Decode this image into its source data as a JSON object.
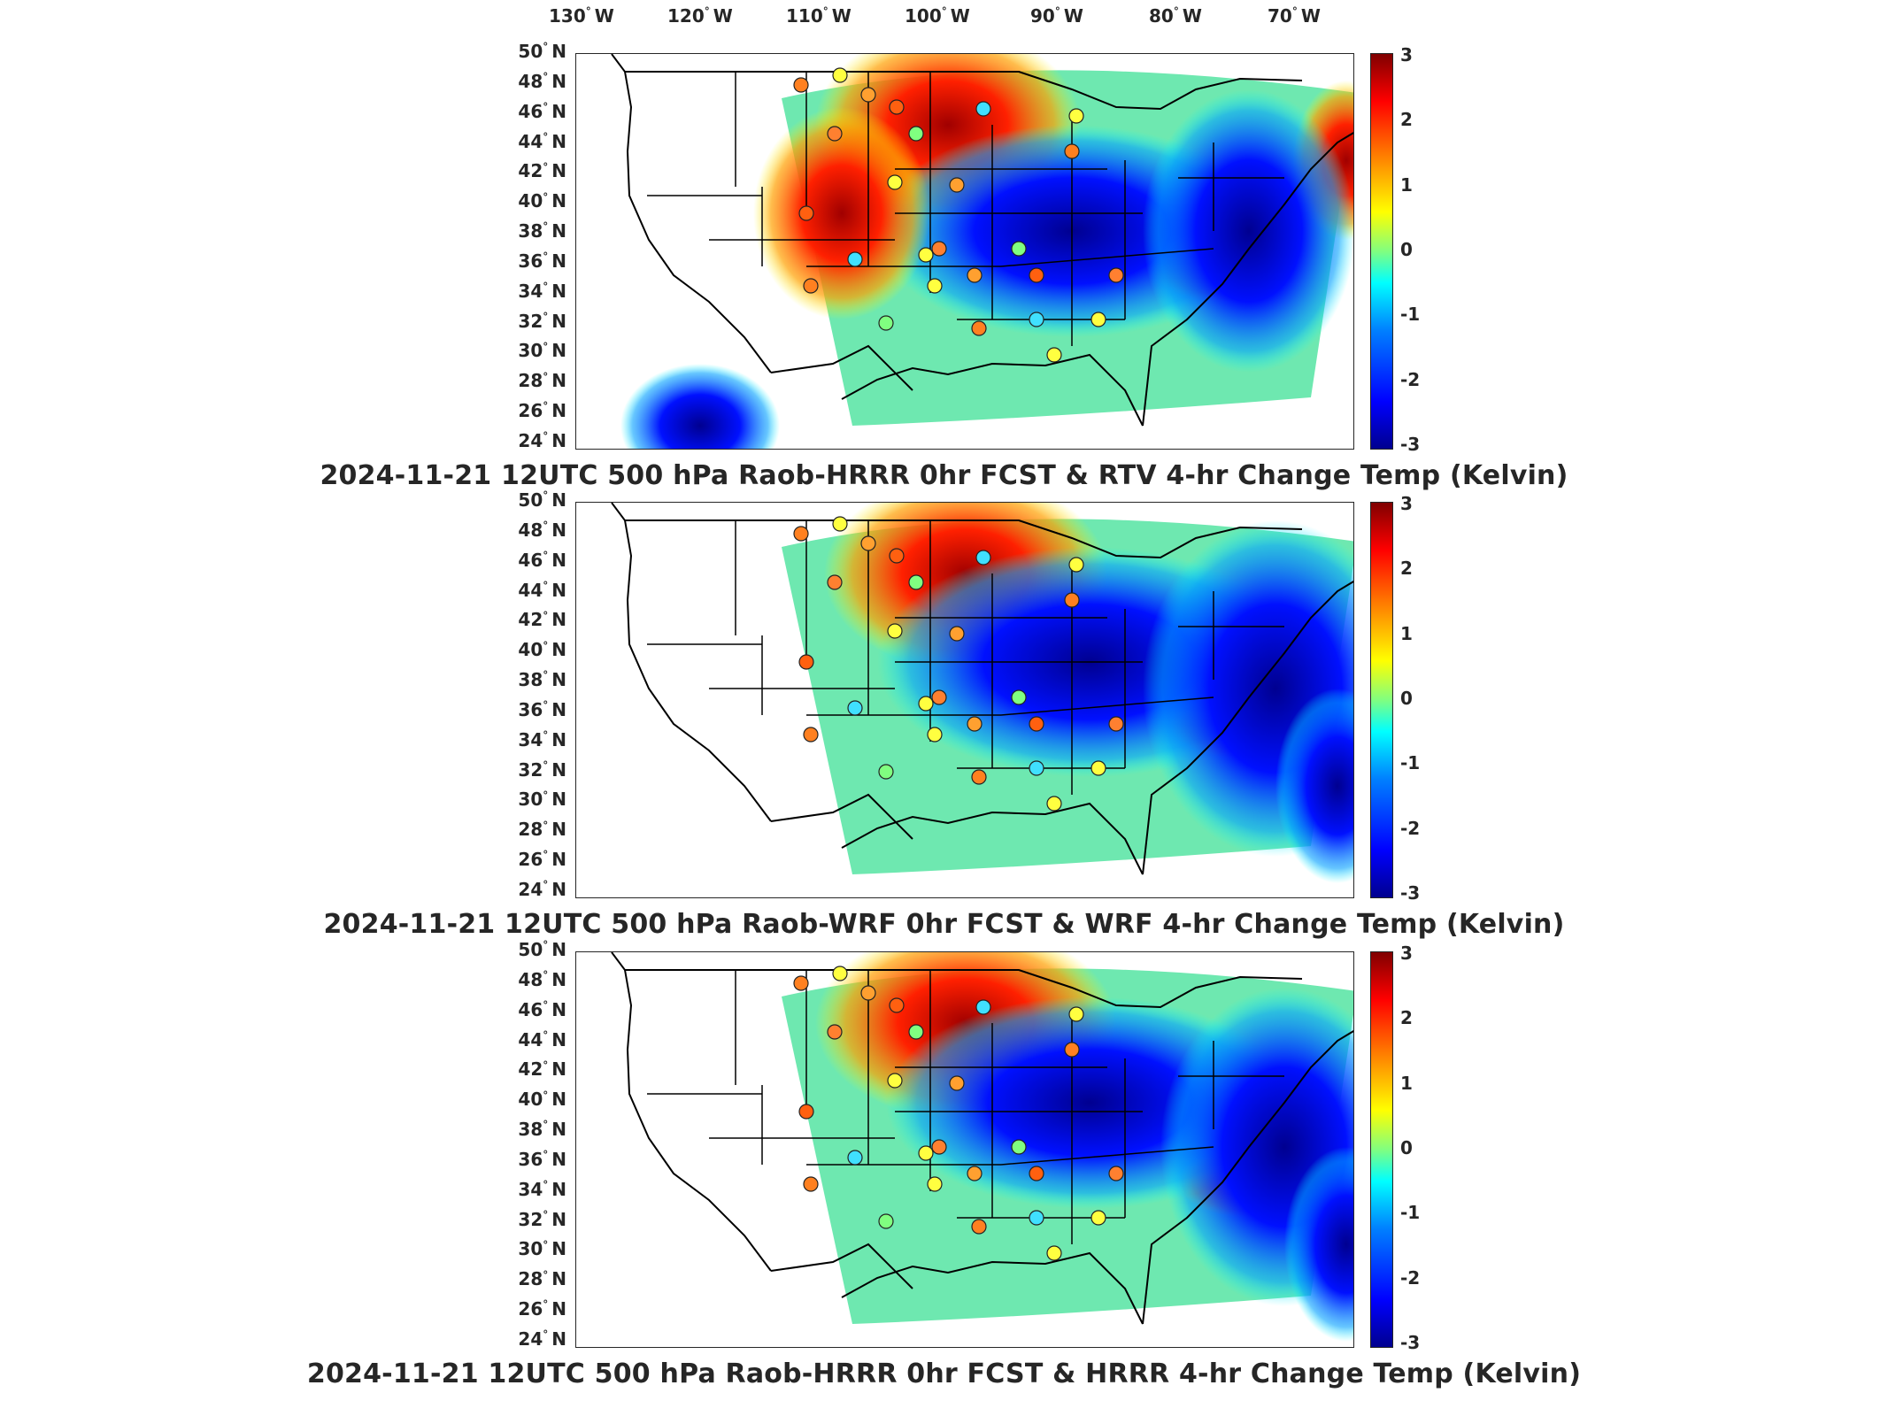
{
  "longitude_labels": [
    "130",
    "120",
    "110",
    "100",
    "90",
    "80",
    "70"
  ],
  "longitude_suffix": "W",
  "latitude_labels": [
    "50",
    "48",
    "46",
    "44",
    "42",
    "40",
    "38",
    "36",
    "34",
    "32",
    "30",
    "28",
    "26",
    "24"
  ],
  "latitude_suffix": "N",
  "degree_symbol": "°",
  "colorbar": {
    "ticks": [
      "3",
      "2",
      "1",
      "0",
      "-1",
      "-2",
      "-3"
    ],
    "range": [
      -3,
      3
    ],
    "colormap": [
      "#00008f",
      "#0000ff",
      "#0080ff",
      "#00ffff",
      "#80ff80",
      "#ffff00",
      "#ff8000",
      "#ff0000",
      "#800000"
    ]
  },
  "panels": [
    {
      "title": "2024-11-21 12UTC 500 hPa Raob-HRRR 0hr FCST & RTV 4-hr Change Temp (Kelvin)"
    },
    {
      "title": "2024-11-21 12UTC 500 hPa Raob-WRF 0hr FCST & WRF 4-hr Change Temp (Kelvin)"
    },
    {
      "title": "2024-11-21 12UTC 500 hPa Raob-HRRR 0hr FCST & HRRR 4-hr Change Temp (Kelvin)"
    }
  ]
}
